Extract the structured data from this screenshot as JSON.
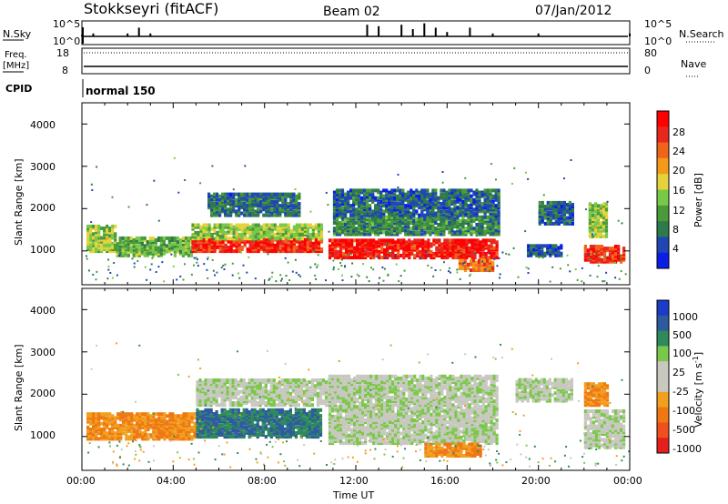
{
  "header": {
    "station": "Stokkseyri (fitACF)",
    "beam": "Beam 02",
    "date": "07/Jan/2012"
  },
  "noise_panel": {
    "left_label": "N.Sky",
    "left_ticks": [
      "10^5",
      "10^0"
    ],
    "right_label": "N.Search",
    "right_ticks": [
      "10^5",
      "10^0"
    ]
  },
  "freq_panel": {
    "left_label_1": "Freq.",
    "left_label_2": "[MHz]",
    "left_ticks": [
      "18",
      "8"
    ],
    "right_label": "Nave",
    "right_ticks": [
      "80",
      "0"
    ]
  },
  "cpid_panel": {
    "label": "CPID",
    "program": "normal 150"
  },
  "power_panel": {
    "ylabel": "Slant Range [km]",
    "yticks": [
      "4000",
      "3000",
      "2000",
      "1000"
    ],
    "colorbar_label": "Power [dB]",
    "colorbar_ticks": [
      "28",
      "24",
      "20",
      "16",
      "12",
      "8",
      "4"
    ]
  },
  "velocity_panel": {
    "ylabel": "Slant Range [km]",
    "yticks": [
      "4000",
      "3000",
      "2000",
      "1000"
    ],
    "colorbar_label": "Velocity [m s",
    "colorbar_label_sup": "-1",
    "colorbar_label_end": "]",
    "colorbar_ticks": [
      "1000",
      "500",
      "100",
      "25",
      "-25",
      "-100",
      "-500",
      "-1000"
    ]
  },
  "xaxis": {
    "label": "Time UT",
    "ticks": [
      "00:00",
      "04:00",
      "08:00",
      "12:00",
      "16:00",
      "20:00",
      "00:00"
    ]
  },
  "colors": {
    "power_scale": [
      "#0a1ee6",
      "#1e46b4",
      "#2e7a4a",
      "#4a9a3a",
      "#7ac84a",
      "#e6d23a",
      "#f39a1a",
      "#f0641a",
      "#e8281e",
      "#ff0000"
    ],
    "velocity_scale": [
      "#1a3cc8",
      "#2e5aa0",
      "#2e8a5a",
      "#7ac84a",
      "#c8c8c0",
      "#c8c8c0",
      "#f0a01e",
      "#f07814",
      "#f0501e",
      "#e61e1e"
    ]
  },
  "chart_data": [
    {
      "type": "line",
      "name": "noise",
      "x_unit": "hours UT",
      "x": [
        0,
        0.5,
        2,
        2.5,
        3,
        12.5,
        13,
        14,
        14.5,
        15,
        15.5,
        16,
        17,
        18,
        20,
        24
      ],
      "y_relative": [
        0.1,
        0.2,
        0.2,
        0.6,
        0.2,
        0.8,
        0.7,
        0.8,
        0.5,
        0.9,
        0.6,
        0.3,
        0.6,
        0.2,
        0.2,
        0.2
      ]
    },
    {
      "type": "line",
      "name": "frequency",
      "ylim": [
        8,
        18
      ],
      "x": [
        0,
        24
      ],
      "y": [
        8.5,
        8.5
      ]
    },
    {
      "type": "heatmap",
      "name": "power",
      "xlim": [
        0,
        24
      ],
      "ylim": [
        200,
        4500
      ],
      "clim": [
        0,
        30
      ],
      "regions": [
        {
          "t0": 0.2,
          "t1": 1.5,
          "r0": 950,
          "r1": 1550,
          "v": 14
        },
        {
          "t0": 1.5,
          "t1": 4.8,
          "r0": 850,
          "r1": 1300,
          "v": 12
        },
        {
          "t0": 4.8,
          "t1": 10.5,
          "r0": 950,
          "r1": 1250,
          "v": 26
        },
        {
          "t0": 4.8,
          "t1": 10.5,
          "r0": 1250,
          "r1": 1600,
          "v": 14
        },
        {
          "t0": 5.5,
          "t1": 9.5,
          "r0": 1800,
          "r1": 2300,
          "v": 7
        },
        {
          "t0": 10.8,
          "t1": 18.2,
          "r0": 800,
          "r1": 1250,
          "v": 27
        },
        {
          "t0": 11,
          "t1": 18.2,
          "r0": 1350,
          "r1": 1800,
          "v": 9
        },
        {
          "t0": 11,
          "t1": 18.2,
          "r0": 1800,
          "r1": 2400,
          "v": 6
        },
        {
          "t0": 16.5,
          "t1": 18,
          "r0": 500,
          "r1": 750,
          "v": 22
        },
        {
          "t0": 19.5,
          "t1": 21,
          "r0": 850,
          "r1": 1100,
          "v": 5
        },
        {
          "t0": 20,
          "t1": 21.5,
          "r0": 1600,
          "r1": 2100,
          "v": 6
        },
        {
          "t0": 22,
          "t1": 23.8,
          "r0": 700,
          "r1": 1100,
          "v": 25
        },
        {
          "t0": 22.2,
          "t1": 23,
          "r0": 1300,
          "r1": 2100,
          "v": 14
        }
      ]
    },
    {
      "type": "heatmap",
      "name": "velocity",
      "xlim": [
        0,
        24
      ],
      "ylim": [
        200,
        4500
      ],
      "clim": [
        -1000,
        1000
      ],
      "regions": [
        {
          "t0": 0.2,
          "t1": 5,
          "r0": 900,
          "r1": 1500,
          "v": -300
        },
        {
          "t0": 5,
          "t1": 10.5,
          "r0": 950,
          "r1": 1600,
          "v": 300
        },
        {
          "t0": 5,
          "t1": 11,
          "r0": 1700,
          "r1": 2300,
          "v": 0
        },
        {
          "t0": 10.8,
          "t1": 18.2,
          "r0": 800,
          "r1": 2400,
          "v": 0
        },
        {
          "t0": 15,
          "t1": 17.5,
          "r0": 500,
          "r1": 800,
          "v": -300
        },
        {
          "t0": 19,
          "t1": 21.5,
          "r0": 1800,
          "r1": 2300,
          "v": 0
        },
        {
          "t0": 22,
          "t1": 23.8,
          "r0": 700,
          "r1": 1600,
          "v": 0
        },
        {
          "t0": 22,
          "t1": 23,
          "r0": 1700,
          "r1": 2200,
          "v": -300
        }
      ]
    }
  ]
}
